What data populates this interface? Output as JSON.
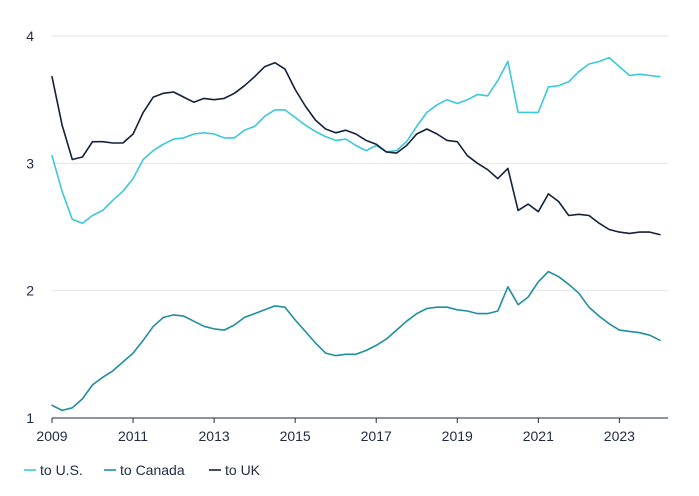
{
  "chart_data": {
    "type": "line",
    "title": "",
    "xlabel": "",
    "ylabel": "",
    "xlim": [
      2009,
      2024.2
    ],
    "ylim": [
      1,
      4
    ],
    "x_ticks": [
      2009,
      2011,
      2013,
      2015,
      2017,
      2019,
      2021,
      2023
    ],
    "x_tick_labels": [
      "2009",
      "2011",
      "2013",
      "2015",
      "2017",
      "2019",
      "2021",
      "2023"
    ],
    "y_ticks": [
      1,
      2,
      3,
      4
    ],
    "y_tick_labels": [
      "1",
      "2",
      "3",
      "4"
    ],
    "grid": "horizontal",
    "legend_position": "bottom-left",
    "colors": {
      "us": "#3cc8d8",
      "canada": "#1f8fa0",
      "uk": "#13213d",
      "grid": "#e3e6ea",
      "axis": "#1f2a44"
    },
    "series": [
      {
        "key": "us",
        "name": "to U.S.",
        "x": [
          2009.0,
          2009.25,
          2009.5,
          2009.75,
          2010.0,
          2010.25,
          2010.5,
          2010.75,
          2011.0,
          2011.25,
          2011.5,
          2011.75,
          2012.0,
          2012.25,
          2012.5,
          2012.75,
          2013.0,
          2013.25,
          2013.5,
          2013.75,
          2014.0,
          2014.25,
          2014.5,
          2014.75,
          2015.0,
          2015.25,
          2015.5,
          2015.75,
          2016.0,
          2016.25,
          2016.5,
          2016.75,
          2017.0,
          2017.25,
          2017.5,
          2017.75,
          2018.0,
          2018.25,
          2018.5,
          2018.75,
          2019.0,
          2019.25,
          2019.5,
          2019.75,
          2020.0,
          2020.25,
          2020.5,
          2020.75,
          2021.0,
          2021.25,
          2021.5,
          2021.75,
          2022.0,
          2022.25,
          2022.5,
          2022.75,
          2023.0,
          2023.25,
          2023.5,
          2023.75,
          2024.0
        ],
        "values": [
          3.06,
          2.78,
          2.56,
          2.53,
          2.59,
          2.63,
          2.71,
          2.78,
          2.88,
          3.03,
          3.1,
          3.15,
          3.19,
          3.2,
          3.23,
          3.24,
          3.23,
          3.2,
          3.2,
          3.26,
          3.29,
          3.37,
          3.42,
          3.42,
          3.36,
          3.3,
          3.25,
          3.21,
          3.18,
          3.19,
          3.14,
          3.1,
          3.14,
          3.09,
          3.1,
          3.17,
          3.29,
          3.4,
          3.46,
          3.5,
          3.47,
          3.5,
          3.54,
          3.53,
          3.65,
          3.8,
          3.4,
          3.4,
          3.4,
          3.6,
          3.61,
          3.64,
          3.72,
          3.78,
          3.8,
          3.83,
          3.76,
          3.69,
          3.7,
          3.69,
          3.68
        ]
      },
      {
        "key": "canada",
        "name": "to Canada",
        "x": [
          2009.0,
          2009.25,
          2009.5,
          2009.75,
          2010.0,
          2010.25,
          2010.5,
          2010.75,
          2011.0,
          2011.25,
          2011.5,
          2011.75,
          2012.0,
          2012.25,
          2012.5,
          2012.75,
          2013.0,
          2013.25,
          2013.5,
          2013.75,
          2014.0,
          2014.25,
          2014.5,
          2014.75,
          2015.0,
          2015.25,
          2015.5,
          2015.75,
          2016.0,
          2016.25,
          2016.5,
          2016.75,
          2017.0,
          2017.25,
          2017.5,
          2017.75,
          2018.0,
          2018.25,
          2018.5,
          2018.75,
          2019.0,
          2019.25,
          2019.5,
          2019.75,
          2020.0,
          2020.25,
          2020.5,
          2020.75,
          2021.0,
          2021.25,
          2021.5,
          2021.75,
          2022.0,
          2022.25,
          2022.5,
          2022.75,
          2023.0,
          2023.25,
          2023.5,
          2023.75,
          2024.0
        ],
        "values": [
          1.1,
          1.06,
          1.08,
          1.15,
          1.26,
          1.32,
          1.37,
          1.44,
          1.51,
          1.61,
          1.72,
          1.79,
          1.81,
          1.8,
          1.76,
          1.72,
          1.7,
          1.69,
          1.73,
          1.79,
          1.82,
          1.85,
          1.88,
          1.87,
          1.77,
          1.68,
          1.59,
          1.51,
          1.49,
          1.5,
          1.5,
          1.53,
          1.57,
          1.62,
          1.69,
          1.76,
          1.82,
          1.86,
          1.87,
          1.87,
          1.85,
          1.84,
          1.82,
          1.82,
          1.84,
          2.03,
          1.89,
          1.95,
          2.07,
          2.15,
          2.11,
          2.05,
          1.98,
          1.87,
          1.8,
          1.74,
          1.69,
          1.68,
          1.67,
          1.65,
          1.61
        ]
      },
      {
        "key": "uk",
        "name": "to UK",
        "x": [
          2009.0,
          2009.25,
          2009.5,
          2009.75,
          2010.0,
          2010.25,
          2010.5,
          2010.75,
          2011.0,
          2011.25,
          2011.5,
          2011.75,
          2012.0,
          2012.25,
          2012.5,
          2012.75,
          2013.0,
          2013.25,
          2013.5,
          2013.75,
          2014.0,
          2014.25,
          2014.5,
          2014.75,
          2015.0,
          2015.25,
          2015.5,
          2015.75,
          2016.0,
          2016.25,
          2016.5,
          2016.75,
          2017.0,
          2017.25,
          2017.5,
          2017.75,
          2018.0,
          2018.25,
          2018.5,
          2018.75,
          2019.0,
          2019.25,
          2019.5,
          2019.75,
          2020.0,
          2020.25,
          2020.5,
          2020.75,
          2021.0,
          2021.25,
          2021.5,
          2021.75,
          2022.0,
          2022.25,
          2022.5,
          2022.75,
          2023.0,
          2023.25,
          2023.5,
          2023.75,
          2024.0
        ],
        "values": [
          3.68,
          3.3,
          3.03,
          3.05,
          3.17,
          3.17,
          3.16,
          3.16,
          3.23,
          3.4,
          3.52,
          3.55,
          3.56,
          3.52,
          3.48,
          3.51,
          3.5,
          3.51,
          3.55,
          3.61,
          3.68,
          3.76,
          3.79,
          3.74,
          3.58,
          3.45,
          3.34,
          3.27,
          3.24,
          3.26,
          3.23,
          3.18,
          3.15,
          3.09,
          3.08,
          3.14,
          3.23,
          3.27,
          3.23,
          3.18,
          3.17,
          3.06,
          3.0,
          2.95,
          2.88,
          2.96,
          2.63,
          2.68,
          2.62,
          2.76,
          2.7,
          2.59,
          2.6,
          2.59,
          2.53,
          2.48,
          2.46,
          2.45,
          2.46,
          2.46,
          2.44
        ]
      }
    ]
  }
}
